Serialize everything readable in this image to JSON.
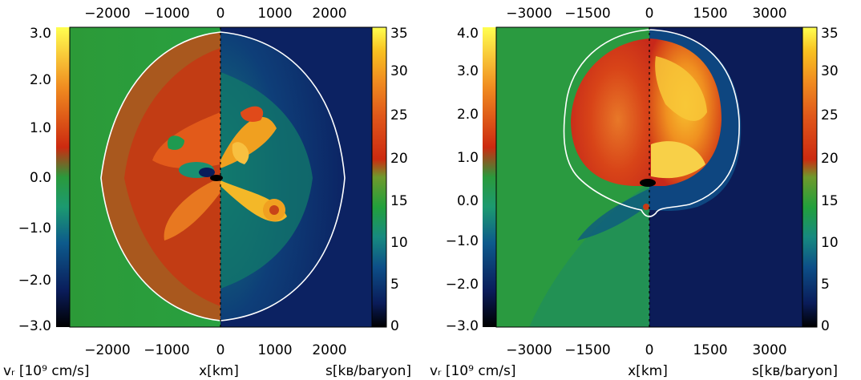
{
  "colorbar_scale": {
    "stops": [
      "#000000",
      "#0a1c5a",
      "#0d5a8c",
      "#1c8c78",
      "#22a03c",
      "#5aa030",
      "#cc2a10",
      "#e45a10",
      "#f09020",
      "#f8c020",
      "#ffff40"
    ],
    "ticks": [
      "0",
      "5",
      "10",
      "15",
      "20",
      "25",
      "30",
      "35"
    ]
  },
  "panels": [
    {
      "id": "left",
      "top_ticks": [
        "−2000",
        "−1000",
        "0",
        "1000",
        "2000"
      ],
      "bottom_ticks": [
        "−2000",
        "−1000",
        "0",
        "1000",
        "2000"
      ],
      "left_ticks": [
        "3.0",
        "2.0",
        "1.0",
        "0.0",
        "−1.0",
        "−2.0",
        "−3.0"
      ],
      "label_left": "vᵣ [10⁹ cm/s]",
      "label_mid": "x[km]",
      "label_right": "s[kʙ/baryon]"
    },
    {
      "id": "right",
      "top_ticks": [
        "−3000",
        "−1500",
        "0",
        "1500",
        "3000"
      ],
      "bottom_ticks": [
        "−3000",
        "−1500",
        "0",
        "1500",
        "3000"
      ],
      "left_ticks": [
        "4.0",
        "3.0",
        "2.0",
        "1.0",
        "0.0",
        "−1.0",
        "−2.0",
        "−3.0"
      ],
      "label_left": "vᵣ [10⁹ cm/s]",
      "label_mid": "x[km]",
      "label_right": "s[kʙ/baryon]"
    }
  ],
  "colors": {
    "outside_green": "#2a9a3c",
    "outside_navy": "#0c2060",
    "shock_line": "#ffffff",
    "hot_red": "#d23010",
    "hot_orange": "#f08a18",
    "hot_yellow": "#f8c428"
  }
}
